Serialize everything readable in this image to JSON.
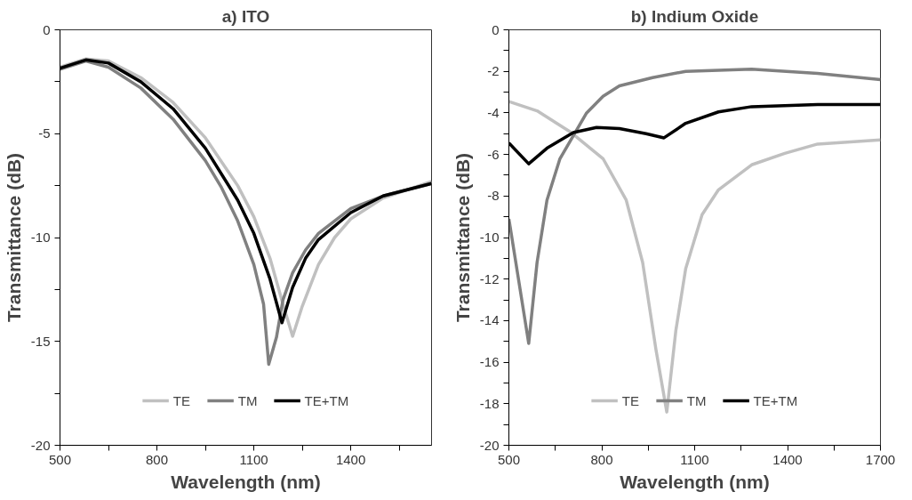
{
  "chart_data": [
    {
      "type": "line",
      "title": "a) ITO",
      "xlabel": "Wavelength (nm)",
      "ylabel": "Transmittance (dB)",
      "xlim": [
        500,
        1650
      ],
      "xticks": [
        500,
        {
          "value": 650,
          "label": null
        },
        800,
        {
          "value": 950,
          "label": null
        },
        1100,
        {
          "value": 1250,
          "label": null
        },
        1400,
        {
          "value": 1550,
          "label": null
        }
      ],
      "ylim": [
        -20,
        0
      ],
      "yticks": [
        -20,
        {
          "value": -17.5,
          "label": null
        },
        -15,
        {
          "value": -12.5,
          "label": null
        },
        -10,
        {
          "value": -7.5,
          "label": null
        },
        -5,
        {
          "value": -2.5,
          "label": null
        },
        0
      ],
      "grid": false,
      "legend": "bottom",
      "marker": "none",
      "line_style": "solid",
      "series": [
        {
          "name": "TE",
          "color": "#c0c0c0",
          "x": [
            500,
            580,
            650,
            750,
            850,
            950,
            1050,
            1100,
            1150,
            1190,
            1220,
            1250,
            1300,
            1350,
            1400,
            1500,
            1650
          ],
          "values": [
            -1.8,
            -1.4,
            -1.5,
            -2.3,
            -3.5,
            -5.2,
            -7.5,
            -9.0,
            -11.0,
            -13.2,
            -14.75,
            -13.3,
            -11.3,
            -10.0,
            -9.1,
            -8.1,
            -7.3
          ]
        },
        {
          "name": "TM",
          "color": "#808080",
          "x": [
            500,
            580,
            650,
            750,
            850,
            950,
            1000,
            1050,
            1100,
            1130,
            1146,
            1170,
            1190,
            1220,
            1260,
            1300,
            1400,
            1500,
            1650
          ],
          "values": [
            -1.9,
            -1.5,
            -1.8,
            -2.8,
            -4.3,
            -6.3,
            -7.6,
            -9.2,
            -11.3,
            -13.2,
            -16.1,
            -14.8,
            -13.0,
            -11.7,
            -10.6,
            -9.8,
            -8.6,
            -8.0,
            -7.4
          ]
        },
        {
          "name": "TE+TM",
          "color": "#000000",
          "x": [
            500,
            580,
            650,
            750,
            850,
            950,
            1050,
            1100,
            1150,
            1187,
            1220,
            1260,
            1300,
            1400,
            1500,
            1650
          ],
          "values": [
            -1.85,
            -1.45,
            -1.6,
            -2.5,
            -3.8,
            -5.7,
            -8.2,
            -9.8,
            -12.0,
            -14.1,
            -12.4,
            -11.0,
            -10.1,
            -8.8,
            -8.0,
            -7.4
          ]
        }
      ]
    },
    {
      "type": "line",
      "title": "b) Indium Oxide",
      "xlabel": "Wavelength (nm)",
      "ylabel": "Transmittance (dB)",
      "xlim": [
        500,
        1700
      ],
      "xticks": [
        500,
        {
          "value": 650,
          "label": null
        },
        800,
        {
          "value": 950,
          "label": null
        },
        1100,
        {
          "value": 1250,
          "label": null
        },
        1400,
        {
          "value": 1550,
          "label": null
        },
        1700
      ],
      "ylim": [
        -20,
        0
      ],
      "yticks": [
        -20,
        {
          "value": -19,
          "label": null
        },
        -18,
        {
          "value": -17,
          "label": null
        },
        -16,
        {
          "value": -15,
          "label": null
        },
        -14,
        {
          "value": -13,
          "label": null
        },
        -12,
        {
          "value": -11,
          "label": null
        },
        -10,
        {
          "value": -9,
          "label": null
        },
        -8,
        {
          "value": -7,
          "label": null
        },
        -6,
        {
          "value": -5,
          "label": null
        },
        -4,
        {
          "value": -3,
          "label": null
        },
        -2,
        {
          "value": -1,
          "label": null
        },
        0
      ],
      "grid": false,
      "legend": "bottom",
      "marker": "none",
      "line_style": "solid",
      "series": [
        {
          "name": "TE",
          "color": "#c0c0c0",
          "x": [
            500,
            591,
            697,
            804,
            879,
            932,
            975,
            1010,
            1039,
            1071,
            1124,
            1177,
            1284,
            1391,
            1497,
            1700
          ],
          "values": [
            -3.45,
            -3.9,
            -4.9,
            -6.2,
            -8.2,
            -11.2,
            -15.4,
            -18.4,
            -14.5,
            -11.5,
            -8.9,
            -7.7,
            -6.5,
            -5.95,
            -5.5,
            -5.3
          ]
        },
        {
          "name": "TM",
          "color": "#808080",
          "x": [
            500,
            564,
            591,
            623,
            665,
            708,
            751,
            804,
            857,
            964,
            1071,
            1284,
            1497,
            1700
          ],
          "values": [
            -9.1,
            -15.1,
            -11.2,
            -8.2,
            -6.2,
            -5.1,
            -4.0,
            -3.2,
            -2.7,
            -2.3,
            -2.0,
            -1.9,
            -2.1,
            -2.4
          ]
        },
        {
          "name": "TE+TM",
          "color": "#000000",
          "x": [
            500,
            564,
            623,
            708,
            783,
            857,
            943,
            1001,
            1071,
            1177,
            1284,
            1497,
            1700
          ],
          "values": [
            -5.45,
            -6.45,
            -5.7,
            -4.95,
            -4.7,
            -4.75,
            -5.0,
            -5.2,
            -4.5,
            -3.95,
            -3.7,
            -3.6,
            -3.6
          ]
        }
      ]
    }
  ]
}
